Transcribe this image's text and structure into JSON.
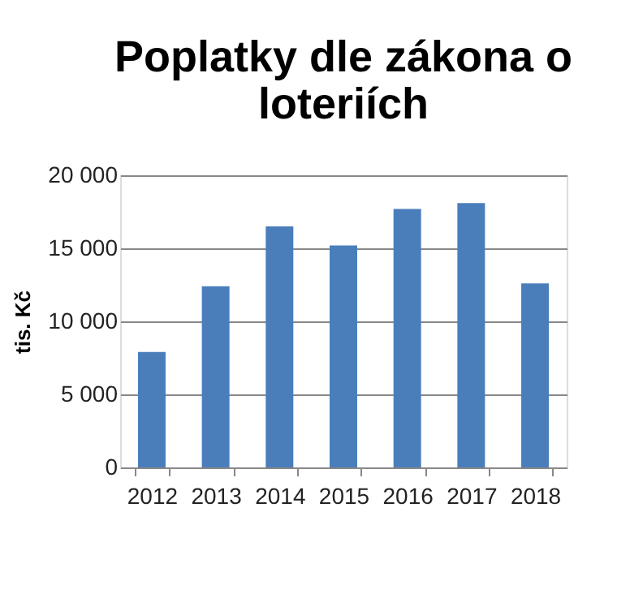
{
  "chart_data": {
    "type": "bar",
    "title": "Poplatky dle zákona o loteriích",
    "ylabel": "tis. Kč",
    "categories": [
      "2012",
      "2013",
      "2014",
      "2015",
      "2016",
      "2017",
      "2018"
    ],
    "values": [
      7900,
      12400,
      16500,
      15200,
      17700,
      18100,
      12600
    ],
    "color": "#4a7ebb",
    "ylim": [
      0,
      20000
    ],
    "yticks": [
      0,
      {
        "value": 5000,
        "label": "5 000"
      },
      {
        "value": 10000,
        "label": "10 000"
      },
      {
        "value": 15000,
        "label": "15 000"
      },
      {
        "value": 20000,
        "label": "20 000"
      }
    ],
    "grid": "y"
  }
}
